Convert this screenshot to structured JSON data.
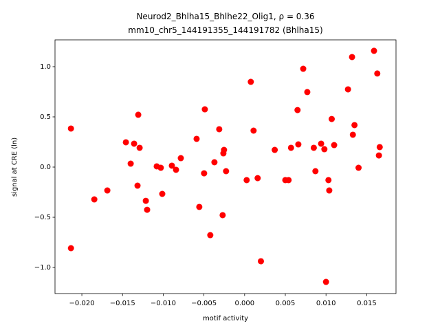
{
  "chart_data": {
    "type": "scatter",
    "title": "Neurod2_Bhlha15_Bhlhe22_Olig1, ρ = 0.36",
    "subtitle": "mm10_chr5_144191355_144191782 (Bhlha15)",
    "x_label": "motif activity",
    "y_label": "signal at CRE (ln)",
    "color": "#ff0000",
    "xlim": [
      -0.0233,
      0.0186
    ],
    "ylim": [
      -1.26,
      1.267
    ],
    "xticks": [
      {
        "value": -0.02,
        "label": "−0.020"
      },
      {
        "value": -0.015,
        "label": "−0.015"
      },
      {
        "value": -0.01,
        "label": "−0.010"
      },
      {
        "value": -0.005,
        "label": "−0.005"
      },
      {
        "value": 0,
        "label": "0.000"
      },
      {
        "value": 0.005,
        "label": "0.005"
      },
      {
        "value": 0.01,
        "label": "0.010"
      },
      {
        "value": 0.015,
        "label": "0.015"
      }
    ],
    "yticks": [
      {
        "value": -1,
        "label": "−1.0"
      },
      {
        "value": -0.5,
        "label": "−0.5"
      },
      {
        "value": 0,
        "label": "0.0"
      },
      {
        "value": 0.5,
        "label": "0.5"
      },
      {
        "value": 1,
        "label": "1.0"
      }
    ],
    "x": [
      -0.02134,
      -0.02134,
      -0.01847,
      -0.01687,
      -0.01459,
      -0.014,
      -0.01358,
      -0.01316,
      -0.01307,
      -0.0129,
      -0.01214,
      -0.01198,
      -0.0108,
      -0.0103,
      -0.01012,
      -0.00894,
      -0.00843,
      -0.00784,
      -0.0059,
      -0.00557,
      -0.00498,
      -0.00489,
      -0.00422,
      -0.00371,
      -0.00312,
      -0.0027,
      -0.00261,
      -0.00253,
      -0.00228,
      0.00025,
      0.00076,
      0.0011,
      0.0016,
      0.002,
      0.0037,
      0.005,
      0.0054,
      0.0057,
      0.0065,
      0.0066,
      0.0072,
      0.0077,
      0.0085,
      0.0087,
      0.0094,
      0.0098,
      0.01,
      0.0103,
      0.0104,
      0.0107,
      0.011,
      0.0127,
      0.0132,
      0.0133,
      0.0135,
      0.014,
      0.0159,
      0.0163,
      0.0165,
      0.0166
    ],
    "values": [
      0.384,
      -0.808,
      -0.322,
      -0.233,
      0.247,
      0.034,
      0.233,
      -0.185,
      0.521,
      0.192,
      -0.336,
      -0.425,
      0.007,
      -0.007,
      -0.267,
      0.014,
      -0.027,
      0.089,
      0.281,
      -0.397,
      -0.062,
      0.575,
      -0.678,
      0.048,
      0.377,
      -0.479,
      0.137,
      0.171,
      -0.041,
      -0.13,
      0.849,
      0.363,
      -0.11,
      -0.938,
      0.171,
      -0.13,
      -0.13,
      0.192,
      0.568,
      0.226,
      0.979,
      0.747,
      0.192,
      -0.041,
      0.233,
      0.178,
      -1.144,
      -0.13,
      -0.233,
      0.479,
      0.219,
      0.774,
      1.096,
      0.322,
      0.418,
      -0.007,
      1.158,
      0.932,
      0.116,
      0.199
    ]
  }
}
